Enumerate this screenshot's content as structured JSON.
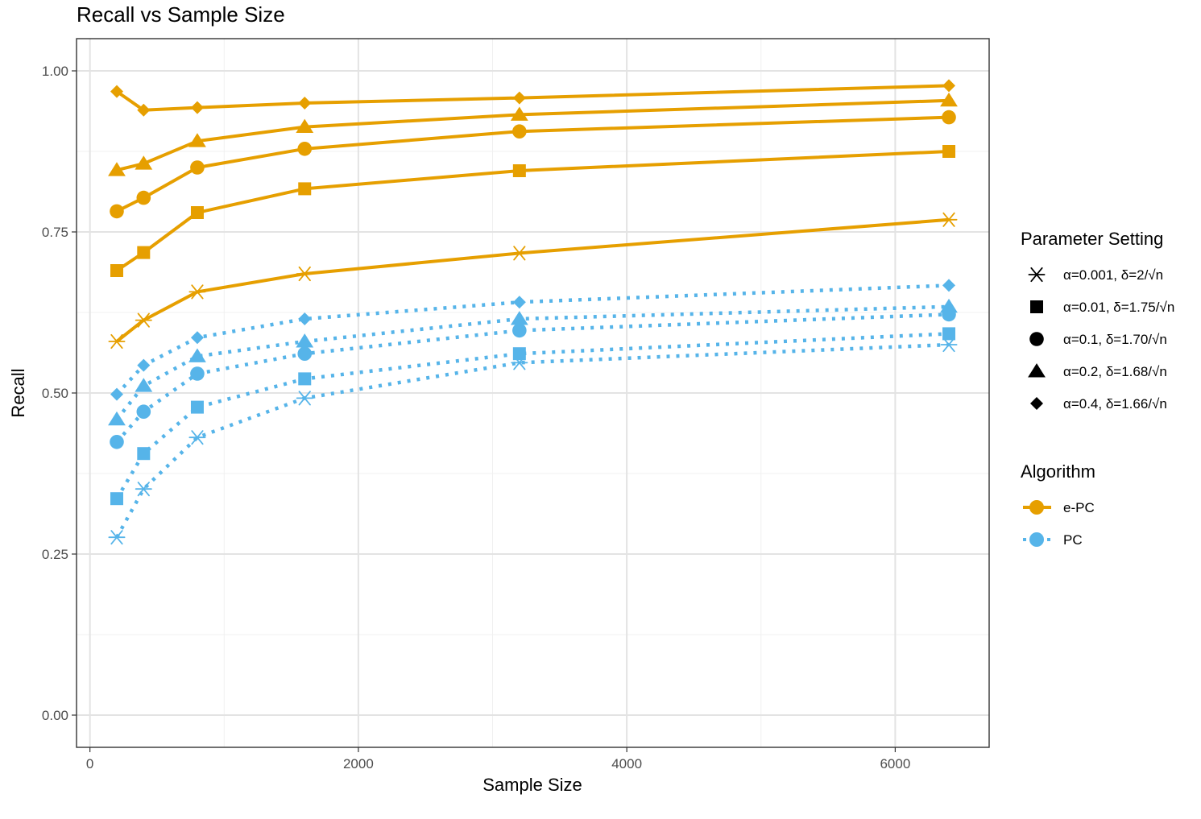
{
  "chart_data": {
    "type": "line",
    "title": "Recall vs Sample Size",
    "xlabel": "Sample Size",
    "ylabel": "Recall",
    "xlim": [
      -100,
      6700
    ],
    "ylim": [
      -0.05,
      1.05
    ],
    "x_ticks": [
      0,
      2000,
      4000,
      6000
    ],
    "x_tick_labels": [
      "0",
      "2000",
      "4000",
      "6000"
    ],
    "y_ticks": [
      0,
      0.25,
      0.5,
      0.75,
      1.0
    ],
    "y_tick_labels": [
      "0.00",
      "0.25",
      "0.50",
      "0.75",
      "1.00"
    ],
    "grid": true,
    "x": [
      200,
      400,
      800,
      1600,
      3200,
      6400
    ],
    "parameter_legend": {
      "title": "Parameter Setting",
      "entries": [
        {
          "label": "α=0.001, δ=2/√n",
          "shape": "asterisk"
        },
        {
          "label": "α=0.01, δ=1.75/√n",
          "shape": "square"
        },
        {
          "label": "α=0.1, δ=1.70/√n",
          "shape": "circle"
        },
        {
          "label": "α=0.2, δ=1.68/√n",
          "shape": "triangle"
        },
        {
          "label": "α=0.4, δ=1.66/√n",
          "shape": "diamond"
        }
      ]
    },
    "algorithm_legend": {
      "title": "Algorithm",
      "entries": [
        {
          "label": "e-PC",
          "color": "#E69F00",
          "linestyle": "solid"
        },
        {
          "label": "PC",
          "color": "#56B4E9",
          "linestyle": "dotted"
        }
      ]
    },
    "series": [
      {
        "algorithm": "e-PC",
        "shape": "asterisk",
        "values": [
          0.58,
          0.613,
          0.657,
          0.685,
          0.717,
          0.769
        ]
      },
      {
        "algorithm": "e-PC",
        "shape": "square",
        "values": [
          0.69,
          0.718,
          0.78,
          0.817,
          0.845,
          0.875
        ]
      },
      {
        "algorithm": "e-PC",
        "shape": "circle",
        "values": [
          0.782,
          0.803,
          0.85,
          0.879,
          0.906,
          0.928
        ]
      },
      {
        "algorithm": "e-PC",
        "shape": "triangle",
        "values": [
          0.846,
          0.856,
          0.891,
          0.913,
          0.932,
          0.954
        ]
      },
      {
        "algorithm": "e-PC",
        "shape": "diamond",
        "values": [
          0.968,
          0.939,
          0.943,
          0.95,
          0.958,
          0.977
        ]
      },
      {
        "algorithm": "PC",
        "shape": "asterisk",
        "values": [
          0.276,
          0.351,
          0.431,
          0.492,
          0.547,
          0.575
        ]
      },
      {
        "algorithm": "PC",
        "shape": "square",
        "values": [
          0.336,
          0.406,
          0.478,
          0.522,
          0.561,
          0.592
        ]
      },
      {
        "algorithm": "PC",
        "shape": "circle",
        "values": [
          0.424,
          0.471,
          0.53,
          0.561,
          0.597,
          0.622
        ]
      },
      {
        "algorithm": "PC",
        "shape": "triangle",
        "values": [
          0.459,
          0.511,
          0.557,
          0.58,
          0.615,
          0.634
        ]
      },
      {
        "algorithm": "PC",
        "shape": "diamond",
        "values": [
          0.498,
          0.543,
          0.586,
          0.615,
          0.641,
          0.667
        ]
      }
    ],
    "colors": {
      "e-PC": "#E69F00",
      "PC": "#56B4E9"
    }
  }
}
